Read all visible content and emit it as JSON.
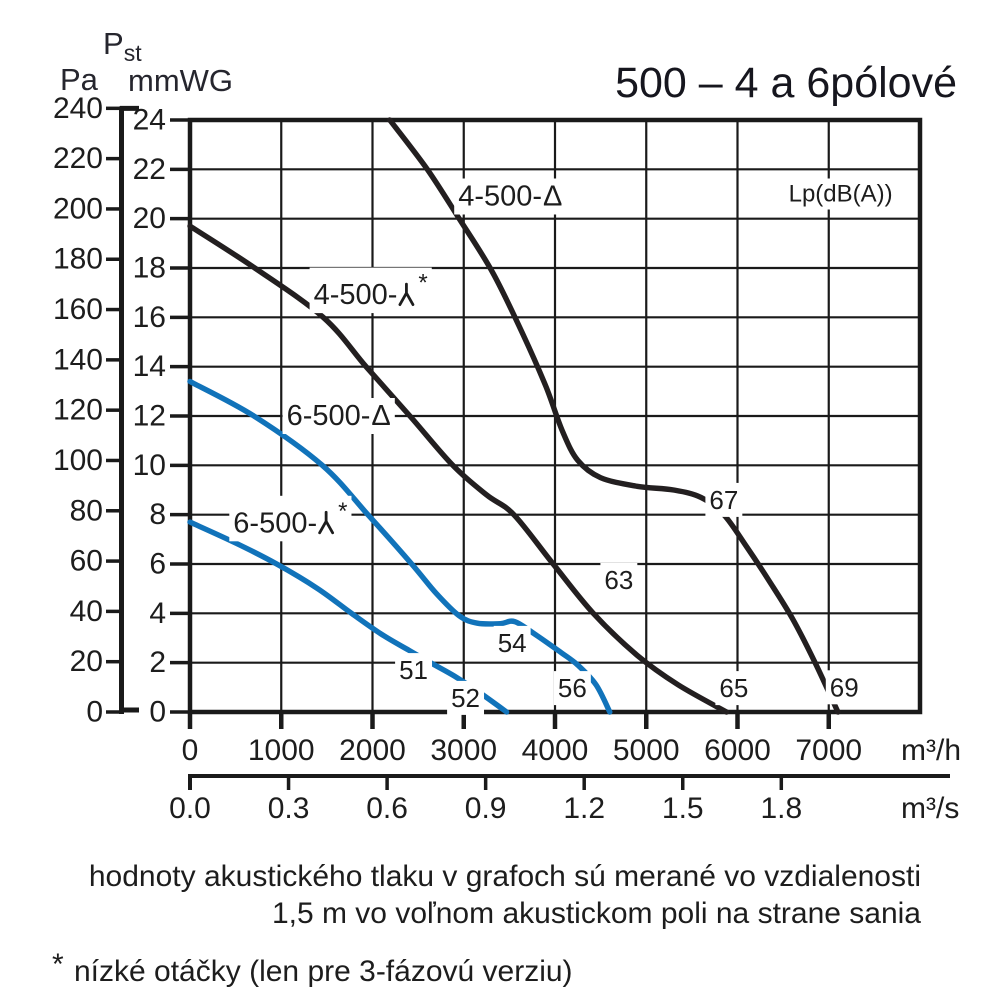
{
  "title": "500 – 4 a 6pólové",
  "colors": {
    "black": "#231f20",
    "blue": "#1173ba",
    "grid": "#1a1a1a",
    "text": "#1d1d1d"
  },
  "pressure_axis": {
    "symbol": "P",
    "symbol_sub": "st",
    "unit_left": "Pa",
    "unit_right": "mmWG",
    "pa_ticks": [
      240,
      220,
      200,
      180,
      160,
      140,
      120,
      100,
      80,
      60,
      40,
      20,
      0
    ],
    "mmwg_ticks": [
      24,
      22,
      20,
      18,
      16,
      14,
      12,
      10,
      8,
      6,
      4,
      2,
      0
    ]
  },
  "flow_axis": {
    "m3h_ticks": [
      0,
      1000,
      2000,
      3000,
      4000,
      5000,
      6000,
      7000
    ],
    "m3h_unit": "m³/h",
    "m3s_ticks": [
      "0.0",
      "0.3",
      "0.6",
      "0.9",
      "1.2",
      "1.5",
      "1.8"
    ],
    "m3s_unit": "m³/s"
  },
  "legend_note": "Lp(dB(A))",
  "chart_data": {
    "type": "line",
    "title": "500 – 4 a 6pólové",
    "xlabel": "m³/h",
    "ylabel": "mmWG",
    "x_range": [
      0,
      8000
    ],
    "y_range": [
      0,
      24
    ],
    "grid": "on",
    "series": [
      {
        "id": "4-500-delta",
        "name": "4-500-Δ",
        "color_key": "black",
        "points": [
          [
            2190,
            24
          ],
          [
            2600,
            22
          ],
          [
            2950,
            20
          ],
          [
            3320,
            17.8
          ],
          [
            3650,
            15.3
          ],
          [
            3900,
            13.2
          ],
          [
            4080,
            11.4
          ],
          [
            4250,
            10.2
          ],
          [
            4500,
            9.5
          ],
          [
            4900,
            9.15
          ],
          [
            5300,
            9.0
          ],
          [
            5600,
            8.7
          ],
          [
            5850,
            8.0
          ],
          [
            6100,
            6.7
          ],
          [
            6350,
            5.3
          ],
          [
            6600,
            3.8
          ],
          [
            6850,
            2.0
          ],
          [
            7100,
            0
          ]
        ]
      },
      {
        "id": "4-500-wye",
        "name": "4-500-⅄*",
        "color_key": "black",
        "points": [
          [
            0,
            19.7
          ],
          [
            710,
            18
          ],
          [
            1460,
            16
          ],
          [
            1930,
            14
          ],
          [
            2410,
            12
          ],
          [
            2880,
            10
          ],
          [
            3250,
            8.8
          ],
          [
            3550,
            8.0
          ],
          [
            3980,
            6.0
          ],
          [
            4420,
            4.0
          ],
          [
            4900,
            2.3
          ],
          [
            5350,
            1.1
          ],
          [
            5880,
            0
          ]
        ]
      },
      {
        "id": "6-500-delta",
        "name": "6-500-Δ",
        "color_key": "blue",
        "points": [
          [
            0,
            13.4
          ],
          [
            700,
            12
          ],
          [
            1450,
            10
          ],
          [
            1950,
            8
          ],
          [
            2430,
            6
          ],
          [
            2700,
            4.8
          ],
          [
            2950,
            3.9
          ],
          [
            3150,
            3.6
          ],
          [
            3400,
            3.58
          ],
          [
            3560,
            3.66
          ],
          [
            3800,
            3.1
          ],
          [
            4070,
            2.4
          ],
          [
            4250,
            1.9
          ],
          [
            4450,
            1.1
          ],
          [
            4600,
            0
          ]
        ]
      },
      {
        "id": "6-500-wye",
        "name": "6-500-⅄*",
        "color_key": "blue",
        "points": [
          [
            0,
            7.7
          ],
          [
            500,
            6.85
          ],
          [
            950,
            6.0
          ],
          [
            1400,
            5.0
          ],
          [
            1770,
            4.0
          ],
          [
            2100,
            3.15
          ],
          [
            2400,
            2.5
          ],
          [
            2660,
            1.95
          ],
          [
            2900,
            1.45
          ],
          [
            3150,
            0.85
          ],
          [
            3470,
            0
          ]
        ]
      }
    ],
    "curve_labels": [
      {
        "id": "4-500-delta",
        "prefix": "4-500-",
        "symbol": "delta",
        "star": false,
        "q": 3510,
        "p": 20.9
      },
      {
        "id": "4-500-wye",
        "prefix": "4-500-",
        "symbol": "wye",
        "star": true,
        "q": 1980,
        "p": 16.9
      },
      {
        "id": "6-500-delta",
        "prefix": "6-500-",
        "symbol": "delta",
        "star": false,
        "q": 1630,
        "p": 12.0
      },
      {
        "id": "6-500-wye",
        "prefix": "6-500-",
        "symbol": "wye",
        "star": true,
        "q": 1100,
        "p": 7.65
      }
    ],
    "noise_labels": [
      {
        "text": "51",
        "q": 2450,
        "p": 1.7
      },
      {
        "text": "52",
        "q": 3020,
        "p": 0.57
      },
      {
        "text": "54",
        "q": 3530,
        "p": 2.8
      },
      {
        "text": "56",
        "q": 4190,
        "p": 0.97
      },
      {
        "text": "63",
        "q": 4700,
        "p": 5.35
      },
      {
        "text": "65",
        "q": 5960,
        "p": 0.97
      },
      {
        "text": "67",
        "q": 5850,
        "p": 8.6
      },
      {
        "text": "69",
        "q": 7170,
        "p": 1.0
      }
    ]
  },
  "footer": {
    "measurement_note_line1": "hodnoty akustického tlaku v grafoch sú merané vo vzdialenosti",
    "measurement_note_line2": "1,5 m vo voľnom akustickom poli na strane sania",
    "footnote_star": "*",
    "footnote": "nízké otáčky (len pre 3-fázovú verziu)"
  }
}
